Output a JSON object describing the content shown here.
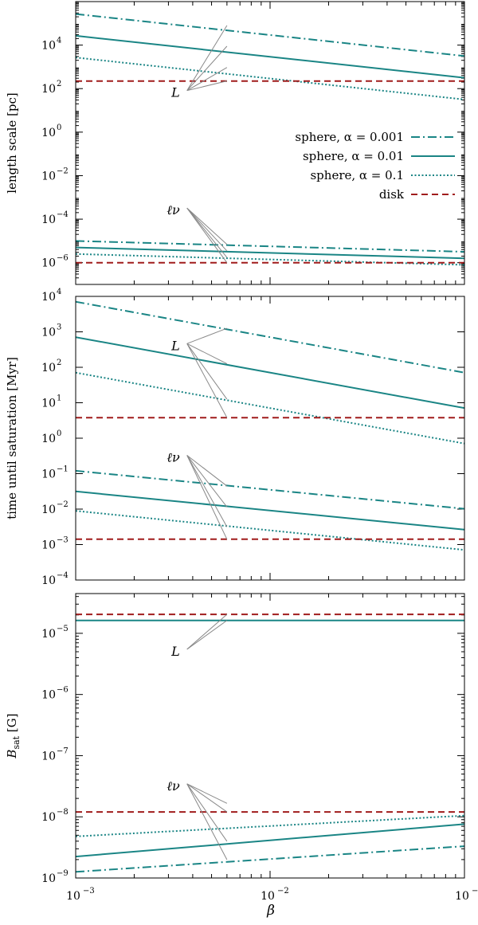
{
  "figure": {
    "x_tick_labels": [
      "10",
      "10",
      "10"
    ],
    "x_tick_exps": [
      "−3",
      "−2",
      "−1"
    ]
  },
  "chart_data": [
    {
      "type": "line",
      "id": "length",
      "ylabel": "length scale [pc]",
      "xlabel": "",
      "xlim": [
        0.001,
        0.1
      ],
      "xscale": "log",
      "ylim_log10": [
        -7,
        6
      ],
      "yscale": "log",
      "ytick_exps": [
        -6,
        -4,
        -2,
        0,
        2,
        4
      ],
      "ytick_labels": [
        "10",
        "10",
        "10",
        "10",
        "10",
        "10"
      ],
      "ytick_sups": [
        "−6",
        "−4",
        "−2",
        "0",
        "2",
        "4"
      ],
      "legend": {
        "position": "center-right",
        "entries": [
          {
            "label": "sphere, α = 0.001",
            "style": "dashdot",
            "color": "#1a8585"
          },
          {
            "label": "sphere, α = 0.01",
            "style": "solid",
            "color": "#1a8585"
          },
          {
            "label": "sphere, α = 0.1",
            "style": "dotted",
            "color": "#1a8585"
          },
          {
            "label": "disk",
            "style": "dashed",
            "color": "#a01c1c"
          }
        ]
      },
      "series": [
        {
          "name": "L sphere α=0.001",
          "style": "dashdot",
          "color": "#1a8585",
          "x": [
            0.001,
            0.1
          ],
          "log10y": [
            5.43,
            3.5
          ]
        },
        {
          "name": "L sphere α=0.01",
          "style": "solid",
          "color": "#1a8585",
          "x": [
            0.001,
            0.1
          ],
          "log10y": [
            4.43,
            2.5
          ]
        },
        {
          "name": "L sphere α=0.1",
          "style": "dotted",
          "color": "#1a8585",
          "x": [
            0.001,
            0.1
          ],
          "log10y": [
            3.43,
            1.5
          ]
        },
        {
          "name": "L disk",
          "style": "dashed",
          "color": "#a01c1c",
          "x": [
            0.001,
            0.1
          ],
          "log10y": [
            2.35,
            2.35
          ]
        },
        {
          "name": "ℓν sphere α=0.001",
          "style": "dashdot",
          "color": "#1a8585",
          "x": [
            0.001,
            0.1
          ],
          "log10y": [
            -5.0,
            -5.5
          ]
        },
        {
          "name": "ℓν sphere α=0.01",
          "style": "solid",
          "color": "#1a8585",
          "x": [
            0.001,
            0.1
          ],
          "log10y": [
            -5.3,
            -5.8
          ]
        },
        {
          "name": "ℓν sphere α=0.1",
          "style": "dotted",
          "color": "#1a8585",
          "x": [
            0.001,
            0.1
          ],
          "log10y": [
            -5.6,
            -6.1
          ]
        },
        {
          "name": "ℓν disk",
          "style": "dashed",
          "color": "#a01c1c",
          "x": [
            0.001,
            0.1
          ],
          "log10y": [
            -6.0,
            -6.0
          ]
        }
      ],
      "annotations": [
        {
          "label": "L",
          "anchor": [
            0.0036,
            1.8
          ],
          "targets": [
            [
              0.006,
              4.9
            ],
            [
              0.006,
              3.95
            ],
            [
              0.006,
              2.97
            ],
            [
              0.006,
              2.35
            ]
          ]
        },
        {
          "label": "ℓν",
          "anchor": [
            0.0036,
            -3.6
          ],
          "targets": [
            [
              0.006,
              -5.16
            ],
            [
              0.006,
              -5.46
            ],
            [
              0.006,
              -5.76
            ],
            [
              0.006,
              -6.0
            ]
          ]
        }
      ]
    },
    {
      "type": "line",
      "id": "time",
      "ylabel": "time until saturation [Myr]",
      "xlabel": "",
      "xlim": [
        0.001,
        0.1
      ],
      "xscale": "log",
      "ylim_log10": [
        -4,
        4
      ],
      "yscale": "log",
      "ytick_exps": [
        -4,
        -3,
        -2,
        -1,
        0,
        1,
        2,
        3,
        4
      ],
      "ytick_labels": [
        "10",
        "10",
        "10",
        "10",
        "10",
        "10",
        "10",
        "10",
        "10"
      ],
      "ytick_sups": [
        "−4",
        "−3",
        "−2",
        "−1",
        "0",
        "1",
        "2",
        "3",
        "4"
      ],
      "series": [
        {
          "name": "L sphere α=0.001",
          "style": "dashdot",
          "color": "#1a8585",
          "x": [
            0.001,
            0.1
          ],
          "log10y": [
            3.85,
            1.85
          ]
        },
        {
          "name": "L sphere α=0.01",
          "style": "solid",
          "color": "#1a8585",
          "x": [
            0.001,
            0.1
          ],
          "log10y": [
            2.85,
            0.85
          ]
        },
        {
          "name": "L sphere α=0.1",
          "style": "dotted",
          "color": "#1a8585",
          "x": [
            0.001,
            0.1
          ],
          "log10y": [
            1.85,
            -0.15
          ]
        },
        {
          "name": "L disk",
          "style": "dashed",
          "color": "#a01c1c",
          "x": [
            0.001,
            0.1
          ],
          "log10y": [
            0.58,
            0.58
          ]
        },
        {
          "name": "ℓν sphere α=0.001",
          "style": "dashdot",
          "color": "#1a8585",
          "x": [
            0.001,
            0.1
          ],
          "log10y": [
            -0.92,
            -1.99
          ]
        },
        {
          "name": "ℓν sphere α=0.01",
          "style": "solid",
          "color": "#1a8585",
          "x": [
            0.001,
            0.1
          ],
          "log10y": [
            -1.5,
            -2.58
          ]
        },
        {
          "name": "ℓν sphere α=0.1",
          "style": "dotted",
          "color": "#1a8585",
          "x": [
            0.001,
            0.1
          ],
          "log10y": [
            -2.05,
            -3.15
          ]
        },
        {
          "name": "ℓν disk",
          "style": "dashed",
          "color": "#a01c1c",
          "x": [
            0.001,
            0.1
          ],
          "log10y": [
            -2.85,
            -2.85
          ]
        }
      ],
      "annotations": [
        {
          "label": "L",
          "anchor": [
            0.0036,
            2.6
          ],
          "targets": [
            [
              0.006,
              3.1
            ],
            [
              0.006,
              2.1
            ],
            [
              0.006,
              1.1
            ],
            [
              0.006,
              0.58
            ]
          ]
        },
        {
          "label": "ℓν",
          "anchor": [
            0.0036,
            -0.55
          ],
          "targets": [
            [
              0.006,
              -1.35
            ],
            [
              0.006,
              -1.94
            ],
            [
              0.006,
              -2.5
            ],
            [
              0.006,
              -2.85
            ]
          ]
        }
      ]
    },
    {
      "type": "line",
      "id": "bsat",
      "ylabel": "B_sat [G]",
      "ylabel_main": "B",
      "ylabel_sub": "sat",
      "ylabel_unit": " [G]",
      "xlabel": "β",
      "xlim": [
        0.001,
        0.1
      ],
      "xscale": "log",
      "ylim_log10": [
        -9,
        -4.35
      ],
      "yscale": "log",
      "ytick_exps": [
        -9,
        -8,
        -7,
        -6,
        -5
      ],
      "ytick_labels": [
        "10",
        "10",
        "10",
        "10",
        "10"
      ],
      "ytick_sups": [
        "−9",
        "−8",
        "−7",
        "−6",
        "−5"
      ],
      "series": [
        {
          "name": "L disk",
          "style": "dashed",
          "color": "#a01c1c",
          "x": [
            0.001,
            0.1
          ],
          "log10y": [
            -4.69,
            -4.69
          ]
        },
        {
          "name": "L sphere",
          "style": "solid",
          "color": "#1a8585",
          "x": [
            0.001,
            0.1
          ],
          "log10y": [
            -4.79,
            -4.79
          ]
        },
        {
          "name": "ℓν sphere α=0.1",
          "style": "dotted",
          "color": "#1a8585",
          "x": [
            0.001,
            0.1
          ],
          "log10y": [
            -8.32,
            -7.98
          ]
        },
        {
          "name": "ℓν disk",
          "style": "dashed",
          "color": "#a01c1c",
          "x": [
            0.001,
            0.1
          ],
          "log10y": [
            -7.92,
            -7.92
          ]
        },
        {
          "name": "ℓν sphere α=0.01",
          "style": "solid",
          "color": "#1a8585",
          "x": [
            0.001,
            0.1
          ],
          "log10y": [
            -8.65,
            -8.12
          ]
        },
        {
          "name": "ℓν sphere α=0.001",
          "style": "dashdot",
          "color": "#1a8585",
          "x": [
            0.001,
            0.1
          ],
          "log10y": [
            -8.9,
            -8.48
          ]
        }
      ],
      "annotations": [
        {
          "label": "L",
          "anchor": [
            0.0036,
            -5.3
          ],
          "targets": [
            [
              0.006,
              -4.69
            ],
            [
              0.006,
              -4.79
            ]
          ]
        },
        {
          "label": "ℓν",
          "anchor": [
            0.0036,
            -7.5
          ],
          "targets": [
            [
              0.006,
              -7.78
            ],
            [
              0.006,
              -7.92
            ],
            [
              0.006,
              -8.4
            ],
            [
              0.006,
              -8.7
            ]
          ]
        }
      ]
    }
  ]
}
